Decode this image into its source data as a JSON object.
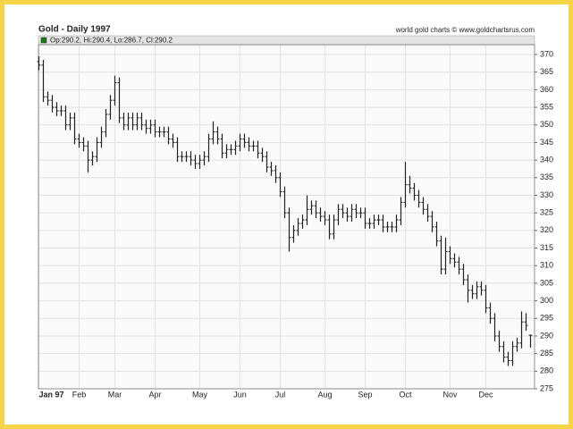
{
  "chart_data": {
    "type": "ohlc",
    "title": "Gold - Daily 1997",
    "source": "world gold charts © www.goldchartsrus.com",
    "legend_text": "Op:290.2, Hi:290.4, Lo:286.7, Cl:290.2",
    "legend_color": "#1a7a1a",
    "color": "#222222",
    "grid": true,
    "ylim": [
      275,
      372.8
    ],
    "yticks": [
      275,
      280,
      285,
      290,
      295,
      300,
      305,
      310,
      315,
      320,
      325,
      330,
      335,
      340,
      345,
      350,
      355,
      360,
      365,
      370
    ],
    "categories": [
      "Jan 97",
      null,
      null,
      null,
      null,
      null,
      null,
      null,
      null,
      "Feb",
      null,
      null,
      null,
      null,
      null,
      null,
      null,
      "Mar",
      null,
      null,
      null,
      null,
      null,
      null,
      null,
      null,
      "Apr",
      null,
      null,
      null,
      null,
      null,
      null,
      null,
      null,
      null,
      "May",
      null,
      null,
      null,
      null,
      null,
      null,
      null,
      null,
      "Jun",
      null,
      null,
      null,
      null,
      null,
      null,
      null,
      null,
      "Jul",
      null,
      null,
      null,
      null,
      null,
      null,
      null,
      null,
      null,
      "Aug",
      null,
      null,
      null,
      null,
      null,
      null,
      null,
      null,
      "Sep",
      null,
      null,
      null,
      null,
      null,
      null,
      null,
      null,
      "Oct",
      null,
      null,
      null,
      null,
      null,
      null,
      null,
      null,
      null,
      "Nov",
      null,
      null,
      null,
      null,
      null,
      null,
      null,
      "Dec",
      null,
      null,
      null,
      null,
      null,
      null,
      null,
      null,
      null,
      null
    ],
    "open": [
      368,
      367,
      358,
      357,
      355,
      354,
      354,
      350,
      352,
      346,
      345,
      344,
      340,
      341,
      345,
      348,
      353,
      357,
      362,
      352,
      350,
      352,
      350,
      352,
      350,
      349,
      350,
      348,
      348,
      348,
      346,
      345,
      341,
      341,
      341,
      340,
      339,
      340,
      341,
      346,
      348,
      346,
      342,
      343,
      343,
      344,
      346,
      345,
      344,
      344,
      342,
      341,
      338,
      337,
      335,
      331,
      325,
      318,
      320,
      322,
      323,
      326,
      327,
      325,
      324,
      323,
      319,
      323,
      326,
      325,
      324,
      326,
      325,
      325,
      322,
      322,
      323,
      323,
      321,
      321,
      321,
      323,
      328,
      333,
      332,
      330,
      328,
      326,
      324,
      321,
      317,
      309,
      314,
      312,
      311,
      309,
      306,
      303,
      302,
      304,
      303,
      298,
      295,
      290,
      287,
      284,
      283,
      287,
      288,
      294,
      290.2
    ],
    "high": [
      369.5,
      368.5,
      359.5,
      358.5,
      356.5,
      355.5,
      355.5,
      353.5,
      353.5,
      347.5,
      346.5,
      345.5,
      342.5,
      346.5,
      349.5,
      354.5,
      358.5,
      364,
      363.5,
      353.5,
      353.5,
      353.5,
      353.5,
      353.5,
      351.5,
      351.5,
      351.5,
      349.5,
      349.5,
      349.5,
      347.5,
      346.5,
      342.5,
      342.5,
      342.5,
      341.5,
      341.5,
      342.5,
      347.5,
      351,
      349.5,
      347.5,
      344.5,
      344.5,
      345.5,
      347.5,
      347.5,
      346.5,
      345.5,
      345.5,
      343.5,
      342.5,
      339.5,
      338.5,
      336.5,
      332.5,
      326.5,
      321.5,
      323.5,
      324.5,
      330,
      328.5,
      328.5,
      326.5,
      325.5,
      324.5,
      324.5,
      327.5,
      327.5,
      326.5,
      327.5,
      327.5,
      326.5,
      326.5,
      323.5,
      324.5,
      324.5,
      324.5,
      322.5,
      322.5,
      324.5,
      329.5,
      339.5,
      335.5,
      333.5,
      331.5,
      329.5,
      327.5,
      325.5,
      322.5,
      318.5,
      318,
      315.5,
      313.5,
      312.5,
      310.5,
      307.5,
      304.5,
      305.5,
      305.5,
      304.5,
      299.5,
      296.5,
      291.5,
      288.5,
      285.5,
      288.5,
      289.5,
      297,
      296.5,
      290.4
    ],
    "low": [
      365.5,
      356.5,
      355.5,
      353.5,
      352.5,
      352.5,
      348.5,
      348.5,
      344.5,
      343.5,
      342.5,
      336.5,
      338.5,
      339.5,
      343.5,
      346.5,
      351.5,
      355.5,
      350.5,
      348.5,
      348.5,
      348.5,
      348.5,
      348.5,
      347.5,
      347.5,
      346.5,
      346.5,
      346.5,
      344.5,
      343.5,
      339.5,
      339.5,
      339.5,
      338.5,
      337.5,
      337.5,
      338.5,
      339.5,
      344.5,
      344.5,
      340.5,
      340.5,
      341.5,
      341.5,
      342.5,
      343.5,
      342.5,
      342.5,
      340.5,
      339.5,
      336.5,
      335.5,
      333.5,
      329.5,
      323.5,
      314,
      316.5,
      318.5,
      320.5,
      321.5,
      324.5,
      323.5,
      322.5,
      321.5,
      317.5,
      317.5,
      321.5,
      323.5,
      322.5,
      322.5,
      323.5,
      323.5,
      320.5,
      320.5,
      320.5,
      321.5,
      319.5,
      319.5,
      319.5,
      319.5,
      321.5,
      326.5,
      330.5,
      328.5,
      326.5,
      324.5,
      322.5,
      319.5,
      315.5,
      307.5,
      307.5,
      310.5,
      309.5,
      307.5,
      304.5,
      299.5,
      300.5,
      300.5,
      301.5,
      296.5,
      293.5,
      288.5,
      285.5,
      282.5,
      281.5,
      281.5,
      285.5,
      286.5,
      291.5,
      286.7
    ],
    "close": [
      367,
      358,
      357,
      355,
      354,
      354,
      350,
      352,
      346,
      345,
      344,
      340,
      341,
      345,
      348,
      353,
      357,
      362,
      352,
      350,
      352,
      350,
      352,
      350,
      349,
      350,
      348,
      348,
      348,
      346,
      345,
      341,
      341,
      341,
      340,
      339,
      340,
      341,
      346,
      348,
      346,
      342,
      343,
      343,
      344,
      346,
      345,
      344,
      344,
      342,
      341,
      338,
      337,
      335,
      331,
      325,
      318,
      320,
      322,
      323,
      326,
      327,
      325,
      324,
      323,
      319,
      323,
      326,
      325,
      324,
      326,
      325,
      325,
      322,
      322,
      323,
      323,
      321,
      321,
      321,
      323,
      328,
      333,
      332,
      330,
      328,
      326,
      324,
      321,
      317,
      309,
      314,
      312,
      311,
      309,
      306,
      303,
      302,
      304,
      303,
      298,
      295,
      290,
      287,
      284,
      283,
      287,
      288,
      294,
      293,
      290.2
    ]
  }
}
